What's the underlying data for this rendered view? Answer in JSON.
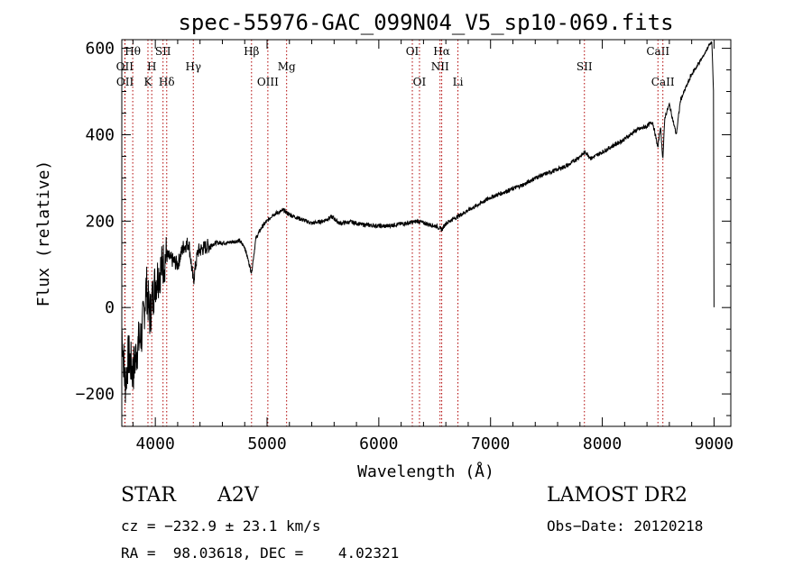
{
  "chart_data": {
    "type": "line",
    "title": "spec-55976-GAC_099N04_V5_sp10-069.fits",
    "xlabel": "Wavelength (Å)",
    "ylabel": "Flux (relative)",
    "xlim": [
      3700,
      9150
    ],
    "ylim": [
      -275,
      620
    ],
    "xticks": [
      4000,
      5000,
      6000,
      7000,
      8000,
      9000
    ],
    "xtick_labels": [
      "4000",
      "5000",
      "6000",
      "7000",
      "8000",
      "9000"
    ],
    "yticks": [
      -200,
      0,
      200,
      400,
      600
    ],
    "ytick_labels": [
      "−200",
      "0",
      "200",
      "400",
      "600"
    ],
    "grid": false,
    "series": [
      {
        "x": [
          3700,
          3730,
          3760,
          3800,
          3840,
          3880,
          3920,
          3950,
          3980,
          4000,
          4050,
          4100,
          4150,
          4200,
          4250,
          4300,
          4340,
          4380,
          4450,
          4550,
          4650,
          4750,
          4800,
          4861,
          4900,
          4950,
          5000,
          5050,
          5100,
          5150,
          5200,
          5300,
          5400,
          5500,
          5580,
          5650,
          5750,
          5850,
          5950,
          6050,
          6150,
          6250,
          6350,
          6450,
          6520,
          6563,
          6600,
          6700,
          6800,
          6900,
          7000,
          7100,
          7200,
          7300,
          7400,
          7500,
          7600,
          7700,
          7800,
          7850,
          7900,
          8000,
          8100,
          8200,
          8300,
          8400,
          8450,
          8498,
          8520,
          8542,
          8560,
          8600,
          8662,
          8700,
          8750,
          8800,
          8850,
          8900,
          8950,
          8980,
          8995,
          9000
        ],
        "y": [
          -50,
          -180,
          -110,
          -150,
          -90,
          -60,
          50,
          -20,
          30,
          60,
          90,
          120,
          110,
          100,
          140,
          150,
          60,
          130,
          140,
          150,
          150,
          155,
          140,
          80,
          160,
          185,
          200,
          215,
          220,
          225,
          215,
          205,
          195,
          200,
          210,
          195,
          198,
          192,
          190,
          188,
          192,
          195,
          200,
          192,
          188,
          180,
          195,
          210,
          225,
          240,
          255,
          265,
          275,
          285,
          300,
          310,
          320,
          330,
          350,
          360,
          345,
          360,
          375,
          390,
          410,
          420,
          430,
          370,
          420,
          345,
          440,
          470,
          400,
          480,
          510,
          540,
          560,
          580,
          605,
          615,
          500,
          0
        ]
      }
    ],
    "lines": [
      {
        "label": "Hθ",
        "x": 3798,
        "row": 0
      },
      {
        "label": "OII",
        "x": 3727,
        "row": 1
      },
      {
        "label": "OII",
        "x": 3729,
        "row": 2
      },
      {
        "label": "SII",
        "x": 4069,
        "row": 0
      },
      {
        "label": "H",
        "x": 3968,
        "row": 1
      },
      {
        "label": "K",
        "x": 3934,
        "row": 2
      },
      {
        "label": "Hδ",
        "x": 4102,
        "row": 2
      },
      {
        "label": "Hγ",
        "x": 4340,
        "row": 1
      },
      {
        "label": "Hβ",
        "x": 4861,
        "row": 0
      },
      {
        "label": "OIII",
        "x": 5007,
        "row": 2
      },
      {
        "label": "Mg",
        "x": 5175,
        "row": 1
      },
      {
        "label": "OI",
        "x": 6300,
        "row": 0
      },
      {
        "label": "OI",
        "x": 6364,
        "row": 2
      },
      {
        "label": "Hα",
        "x": 6563,
        "row": 0
      },
      {
        "label": "NII",
        "x": 6548,
        "row": 1
      },
      {
        "label": "Li",
        "x": 6708,
        "row": 2
      },
      {
        "label": "SII",
        "x": 7840,
        "row": 1
      },
      {
        "label": "CaII",
        "x": 8498,
        "row": 0
      },
      {
        "label": "CaII",
        "x": 8542,
        "row": 2
      }
    ]
  },
  "info": {
    "object_class": "STAR",
    "subclass": "A2V",
    "survey": "LAMOST DR2",
    "cz": "cz = −232.9 ± 23.1 km/s",
    "obs_date": "Obs−Date: 20120218",
    "coords": "RA =  98.03618, DEC =    4.02321"
  }
}
